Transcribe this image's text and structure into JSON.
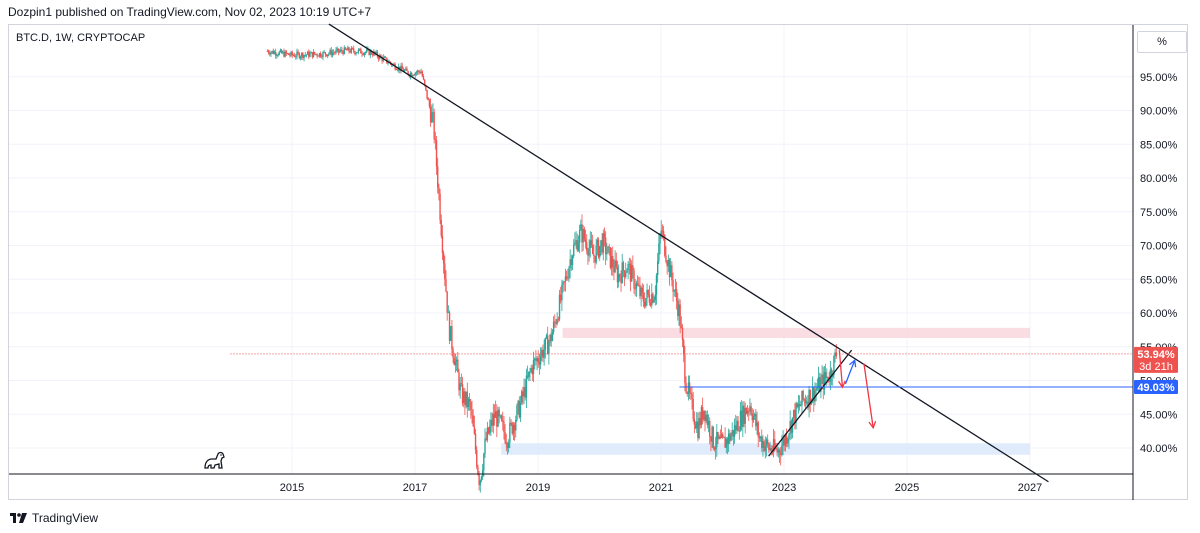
{
  "header": {
    "published_by": "Dozpin1 published on TradingView.com, Nov 02, 2023 10:19 UTC+7"
  },
  "symbol_label": "BTC.D, 1W, CRYPTOCAP",
  "scale_mode_button": "%",
  "footer": {
    "brand": "TradingView"
  },
  "colors": {
    "up": "#26a69a",
    "down": "#ef5350",
    "trendline": "#131722",
    "resistance_zone": "#f8d7de",
    "support_zone": "#dbe7fb",
    "support_line": "#2962ff",
    "current_price_line": "#ef5350",
    "arrow_red": "#f23645",
    "arrow_blue": "#2962ff"
  },
  "chart_data": {
    "type": "candlestick",
    "title": "BTC.D, 1W, CRYPTOCAP",
    "ylim": [
      34.5,
      104.5
    ],
    "y_ticks": [
      "40.00%",
      "45.00%",
      "50.00%",
      "55.00%",
      "60.00%",
      "65.00%",
      "70.00%",
      "75.00%",
      "80.00%",
      "85.00%",
      "90.00%",
      "95.00%"
    ],
    "x_ticks": [
      "2015",
      "2017",
      "2019",
      "2021",
      "2023",
      "2025",
      "2027"
    ],
    "grid": true,
    "path_points": [
      [
        2014.6,
        98.8
      ],
      [
        2015.0,
        98.2
      ],
      [
        2015.5,
        98.4
      ],
      [
        2015.9,
        98.9
      ],
      [
        2016.3,
        98.6
      ],
      [
        2016.7,
        96.5
      ],
      [
        2016.9,
        95.5
      ],
      [
        2017.1,
        95.8
      ],
      [
        2017.3,
        88.0
      ],
      [
        2017.45,
        70.0
      ],
      [
        2017.55,
        58.0
      ],
      [
        2017.75,
        48.0
      ],
      [
        2017.9,
        46.0
      ],
      [
        2018.05,
        35.0
      ],
      [
        2018.15,
        41.0
      ],
      [
        2018.3,
        45.0
      ],
      [
        2018.5,
        41.5
      ],
      [
        2018.7,
        46.0
      ],
      [
        2018.9,
        52.0
      ],
      [
        2019.2,
        56.0
      ],
      [
        2019.4,
        63.0
      ],
      [
        2019.55,
        69.0
      ],
      [
        2019.7,
        72.0
      ],
      [
        2019.9,
        68.5
      ],
      [
        2020.05,
        70.5
      ],
      [
        2020.3,
        65.5
      ],
      [
        2020.45,
        67.0
      ],
      [
        2020.7,
        62.0
      ],
      [
        2020.9,
        63.0
      ],
      [
        2021.0,
        72.5
      ],
      [
        2021.15,
        66.0
      ],
      [
        2021.3,
        60.0
      ],
      [
        2021.4,
        50.0
      ],
      [
        2021.5,
        46.0
      ],
      [
        2021.6,
        43.0
      ],
      [
        2021.7,
        46.0
      ],
      [
        2021.85,
        41.0
      ],
      [
        2022.0,
        40.5
      ],
      [
        2022.15,
        42.0
      ],
      [
        2022.3,
        44.5
      ],
      [
        2022.45,
        46.5
      ],
      [
        2022.6,
        41.5
      ],
      [
        2022.75,
        40.0
      ],
      [
        2022.9,
        39.5
      ],
      [
        2023.0,
        41.0
      ],
      [
        2023.15,
        44.5
      ],
      [
        2023.3,
        47.0
      ],
      [
        2023.45,
        48.0
      ],
      [
        2023.6,
        49.5
      ],
      [
        2023.75,
        51.0
      ],
      [
        2023.85,
        53.9
      ]
    ],
    "trendlines": [
      {
        "name": "descending-resistance",
        "from": [
          2015.6,
          102.8
        ],
        "to": [
          2027.3,
          35.0
        ]
      },
      {
        "name": "ascending-support",
        "from": [
          2022.75,
          38.8
        ],
        "to": [
          2024.1,
          54.5
        ]
      }
    ],
    "zones": [
      {
        "name": "resistance-zone",
        "x": [
          2019.4,
          2027.0
        ],
        "y": [
          56.3,
          57.8
        ]
      },
      {
        "name": "support-zone",
        "x": [
          2018.4,
          2027.0
        ],
        "y": [
          39.0,
          40.7
        ]
      }
    ],
    "horizontal_lines": [
      {
        "name": "support-line",
        "x_from": 2021.3,
        "y": 49.03
      },
      {
        "name": "current-price-line",
        "x_from": 2014.0,
        "y": 53.94
      }
    ],
    "arrows": [
      {
        "name": "red-arrow-1",
        "from": [
          2023.9,
          54.5
        ],
        "to": [
          2023.95,
          49.0
        ]
      },
      {
        "name": "blue-arrow",
        "from": [
          2024.0,
          49.5
        ],
        "to": [
          2024.15,
          53.0
        ]
      },
      {
        "name": "red-arrow-2",
        "from": [
          2024.3,
          52.5
        ],
        "to": [
          2024.45,
          43.0
        ]
      }
    ],
    "price_labels": [
      {
        "name": "current-price",
        "value": "53.94%",
        "countdown": "3d 21h",
        "y": 53.94
      },
      {
        "name": "support-price",
        "value": "49.03%",
        "y": 49.03
      }
    ]
  }
}
